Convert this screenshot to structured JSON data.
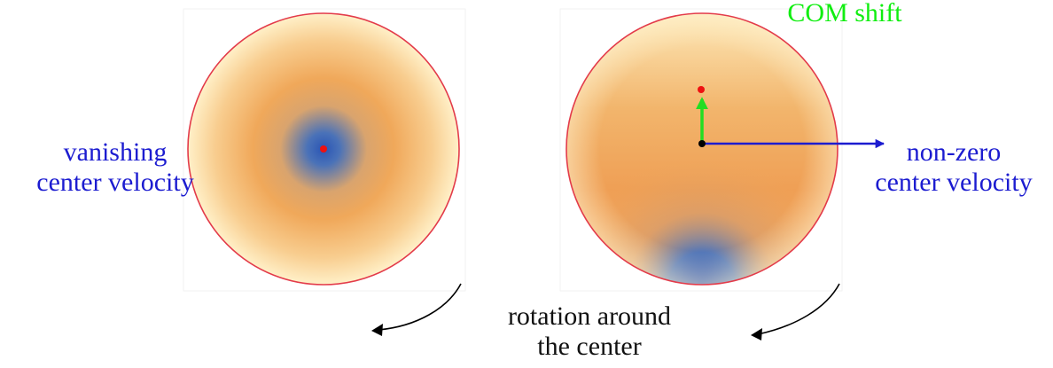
{
  "labels": {
    "left_lines": [
      "vanishing",
      "center velocity"
    ],
    "right_lines": [
      "non-zero",
      "center velocity"
    ],
    "com_shift": "COM shift",
    "rotation_lines": [
      "rotation around",
      "the center"
    ]
  },
  "colors": {
    "label_blue": "#1c1cd0",
    "com_green": "#11ee11",
    "disc_outline": "#e33b4a",
    "disc_light": "#fde7b7",
    "disc_mid": "#f0a85a",
    "disc_center_blue": "#3a66b8",
    "velocity_arrow": "#1c1cd0",
    "com_arrow": "#22dd22",
    "center_dot_red": "#ee1111",
    "center_dot_black": "#000000"
  },
  "icons": {
    "rotation_arrow": "curved-arrow-icon"
  }
}
